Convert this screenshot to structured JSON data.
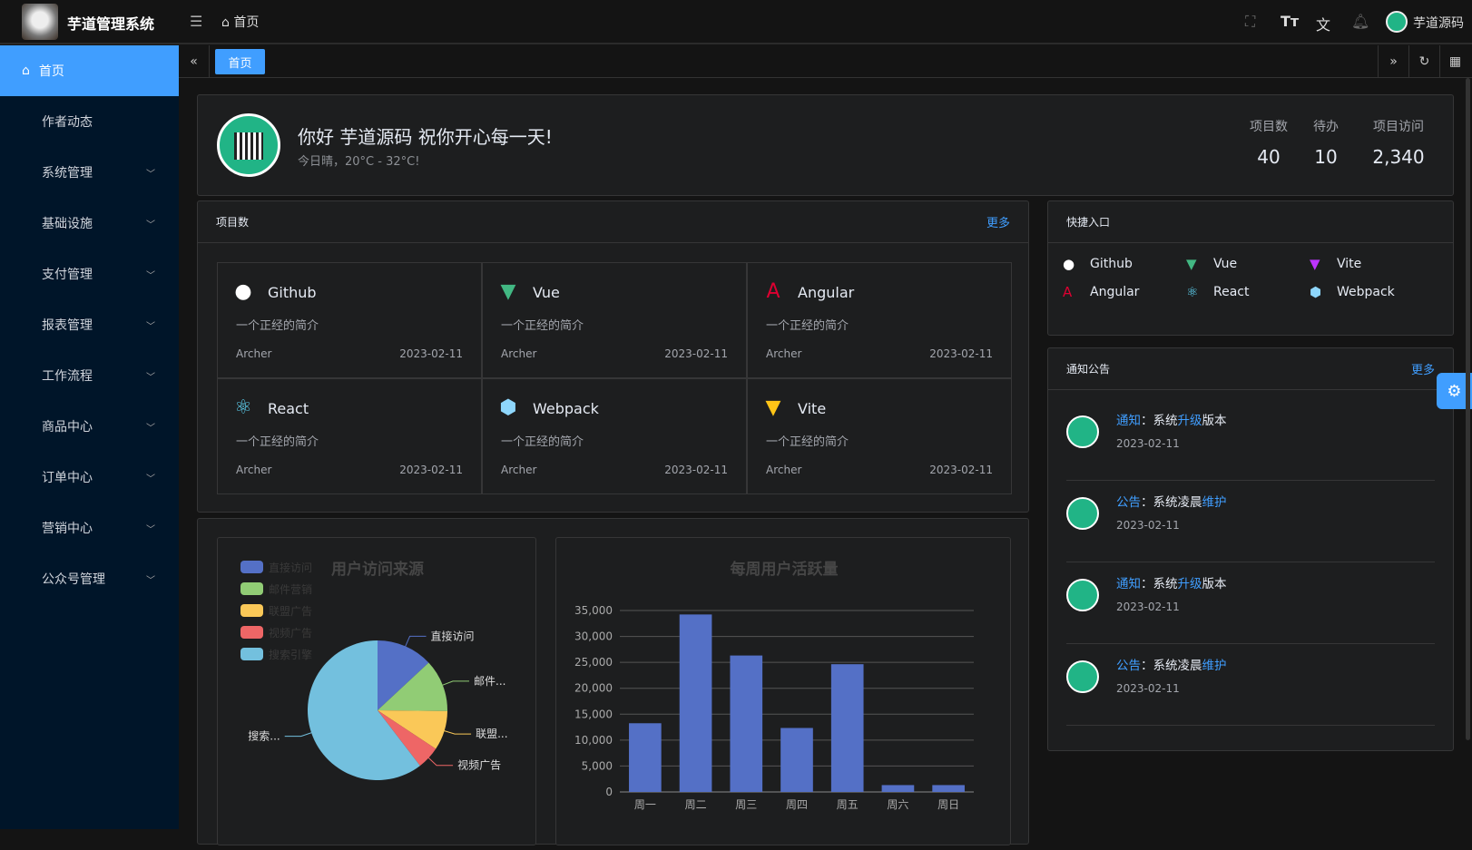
{
  "app": {
    "title": "芋道管理系统",
    "breadcrumb": "首页",
    "user": "芋道源码"
  },
  "header_icons": [
    "fullscreen-icon",
    "font-size-icon",
    "translate-icon",
    "bell-icon"
  ],
  "sidebar": {
    "items": [
      {
        "label": "首页",
        "active": true,
        "expandable": false
      },
      {
        "label": "作者动态",
        "expandable": false
      },
      {
        "label": "系统管理",
        "expandable": true
      },
      {
        "label": "基础设施",
        "expandable": true
      },
      {
        "label": "支付管理",
        "expandable": true
      },
      {
        "label": "报表管理",
        "expandable": true
      },
      {
        "label": "工作流程",
        "expandable": true
      },
      {
        "label": "商品中心",
        "expandable": true
      },
      {
        "label": "订单中心",
        "expandable": true
      },
      {
        "label": "营销中心",
        "expandable": true
      },
      {
        "label": "公众号管理",
        "expandable": true
      }
    ]
  },
  "tabs": [
    {
      "label": "首页",
      "active": true
    }
  ],
  "welcome": {
    "greeting": "你好 芋道源码 祝你开心每一天!",
    "weather": "今日晴，20°C - 32°C!",
    "stats": [
      {
        "label": "项目数",
        "value": "40"
      },
      {
        "label": "待办",
        "value": "10"
      },
      {
        "label": "项目访问",
        "value": "2,340"
      }
    ]
  },
  "projects": {
    "title": "项目数",
    "more": "更多",
    "items": [
      {
        "name": "Github",
        "icon": "github-icon",
        "color": "#ffffff",
        "desc": "一个正经的简介",
        "author": "Archer",
        "date": "2023-02-11"
      },
      {
        "name": "Vue",
        "icon": "vue-icon",
        "color": "#42b883",
        "desc": "一个正经的简介",
        "author": "Archer",
        "date": "2023-02-11"
      },
      {
        "name": "Angular",
        "icon": "angular-icon",
        "color": "#dd0031",
        "desc": "一个正经的简介",
        "author": "Archer",
        "date": "2023-02-11"
      },
      {
        "name": "React",
        "icon": "react-icon",
        "color": "#61dafb",
        "desc": "一个正经的简介",
        "author": "Archer",
        "date": "2023-02-11"
      },
      {
        "name": "Webpack",
        "icon": "webpack-icon",
        "color": "#8ed6fb",
        "desc": "一个正经的简介",
        "author": "Archer",
        "date": "2023-02-11"
      },
      {
        "name": "Vite",
        "icon": "vite-icon",
        "color": "#ffc517",
        "desc": "一个正经的简介",
        "author": "Archer",
        "date": "2023-02-11"
      }
    ]
  },
  "quick": {
    "title": "快捷入口",
    "items": [
      {
        "name": "Github",
        "icon": "github-icon",
        "color": "#ffffff"
      },
      {
        "name": "Vue",
        "icon": "vue-icon",
        "color": "#42b883"
      },
      {
        "name": "Vite",
        "icon": "vite-icon",
        "color": "#bd34fe"
      },
      {
        "name": "Angular",
        "icon": "angular-icon",
        "color": "#dd0031"
      },
      {
        "name": "React",
        "icon": "react-icon",
        "color": "#61dafb"
      },
      {
        "name": "Webpack",
        "icon": "webpack-icon",
        "color": "#8ed6fb"
      }
    ]
  },
  "notices": {
    "title": "通知公告",
    "more": "更多",
    "items": [
      {
        "type": "通知",
        "pre": "系统",
        "hl": "升级",
        "post": "版本",
        "date": "2023-02-11"
      },
      {
        "type": "公告",
        "pre": "系统凌晨",
        "hl": "维护",
        "post": "",
        "date": "2023-02-11"
      },
      {
        "type": "通知",
        "pre": "系统",
        "hl": "升级",
        "post": "版本",
        "date": "2023-02-11"
      },
      {
        "type": "公告",
        "pre": "系统凌晨",
        "hl": "维护",
        "post": "",
        "date": "2023-02-11"
      }
    ]
  },
  "chart_data": [
    {
      "type": "pie",
      "title": "用户访问来源",
      "legend_position": "top-left",
      "slices": [
        {
          "name": "直接访问",
          "value": 335,
          "color": "#5470c6",
          "label": "直接访问"
        },
        {
          "name": "邮件营销",
          "value": 310,
          "color": "#91cc75",
          "label": "邮件..."
        },
        {
          "name": "联盟广告",
          "value": 234,
          "color": "#fac858",
          "label": "联盟..."
        },
        {
          "name": "视频广告",
          "value": 135,
          "color": "#ee6666",
          "label": "视频广告"
        },
        {
          "name": "搜索引擎",
          "value": 1548,
          "color": "#73c0de",
          "label": "搜索..."
        }
      ]
    },
    {
      "type": "bar",
      "title": "每周用户活跃量",
      "categories": [
        "周一",
        "周二",
        "周三",
        "周四",
        "周五",
        "周六",
        "周日"
      ],
      "values": [
        13253,
        34235,
        26321,
        12340,
        24643,
        1322,
        1324
      ],
      "ylim": [
        0,
        35000
      ],
      "yticks": [
        "0",
        "5,000",
        "10,000",
        "15,000",
        "20,000",
        "25,000",
        "30,000",
        "35,000"
      ],
      "color": "#5470c6",
      "grid": true
    }
  ]
}
